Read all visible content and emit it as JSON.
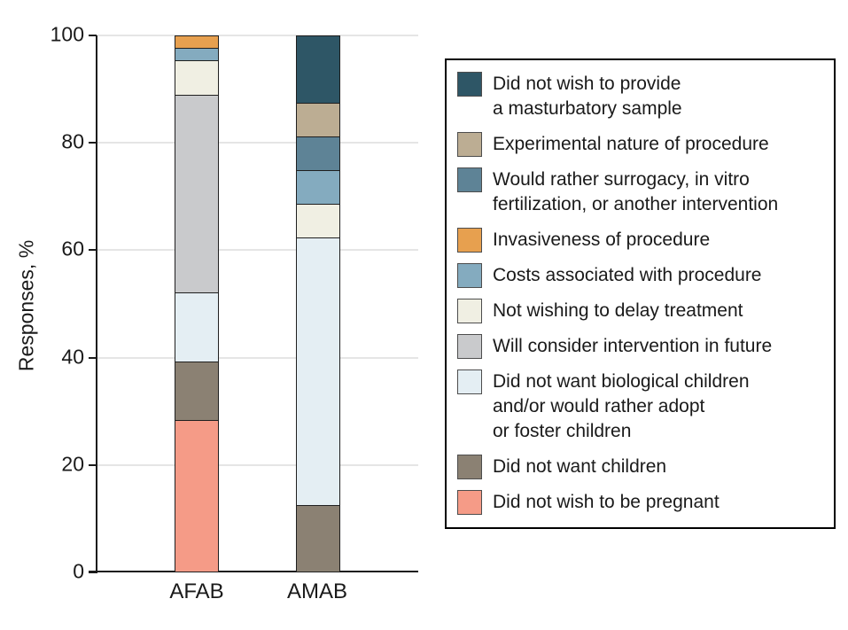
{
  "figure": {
    "ylabel": "Responses, %",
    "x_categories": [
      "AFAB",
      "AMAB"
    ],
    "y_ticks": [
      0,
      20,
      40,
      60,
      80,
      100
    ]
  },
  "legend": {
    "items": [
      {
        "id": "masturbatory-sample",
        "label": "Did not wish to provide\na masturbatory sample",
        "color": "#2e5666"
      },
      {
        "id": "experimental-nature",
        "label": "Experimental nature of procedure",
        "color": "#bcad93"
      },
      {
        "id": "surrogacy-ivf",
        "label": "Would rather surrogacy, in vitro\nfertilization, or another intervention",
        "color": "#5e8396"
      },
      {
        "id": "invasiveness",
        "label": "Invasiveness of procedure",
        "color": "#e7a04f"
      },
      {
        "id": "costs",
        "label": "Costs associated with procedure",
        "color": "#84abbf"
      },
      {
        "id": "delay-treatment",
        "label": "Not wishing to delay treatment",
        "color": "#f0efe3"
      },
      {
        "id": "future-intervention",
        "label": "Will consider intervention in future",
        "color": "#c9cacc"
      },
      {
        "id": "biological-children",
        "label": "Did not want biological children\nand/or would rather adopt\nor foster children",
        "color": "#e4eef3"
      },
      {
        "id": "no-children",
        "label": "Did not want children",
        "color": "#8b8173"
      },
      {
        "id": "pregnant",
        "label": "Did not wish to be pregnant",
        "color": "#f59b87"
      }
    ]
  },
  "chart_data": {
    "type": "bar",
    "subtype": "stacked-vertical",
    "title": "",
    "xlabel": "",
    "ylabel": "Responses, %",
    "ylim": [
      0,
      100
    ],
    "grid": "horizontal",
    "legend_position": "right",
    "categories": [
      "AFAB",
      "AMAB"
    ],
    "series": [
      {
        "id": "masturbatory-sample",
        "name": "Did not wish to provide a masturbatory sample",
        "values": [
          0,
          12.5
        ]
      },
      {
        "id": "experimental-nature",
        "name": "Experimental nature of procedure",
        "values": [
          0,
          6.3
        ]
      },
      {
        "id": "surrogacy-ivf",
        "name": "Would rather surrogacy, in vitro fertilization, or another intervention",
        "values": [
          0,
          6.3
        ]
      },
      {
        "id": "invasiveness",
        "name": "Invasiveness of procedure",
        "values": [
          2.2,
          0
        ]
      },
      {
        "id": "costs",
        "name": "Costs associated with procedure",
        "values": [
          2.2,
          6.3
        ]
      },
      {
        "id": "delay-treatment",
        "name": "Not wishing to delay treatment",
        "values": [
          6.5,
          6.3
        ]
      },
      {
        "id": "future-intervention",
        "name": "Will consider intervention in future",
        "values": [
          37.0,
          0
        ]
      },
      {
        "id": "biological-children",
        "name": "Did not want biological children and/or would rather adopt or foster children",
        "values": [
          13.0,
          50.0
        ]
      },
      {
        "id": "no-children",
        "name": "Did not want children",
        "values": [
          10.9,
          12.5
        ]
      },
      {
        "id": "pregnant",
        "name": "Did not wish to be pregnant",
        "values": [
          28.3,
          0
        ]
      }
    ],
    "stack_order_bottom_to_top": [
      "pregnant",
      "no-children",
      "biological-children",
      "future-intervention",
      "delay-treatment",
      "costs",
      "invasiveness",
      "surrogacy-ivf",
      "experimental-nature",
      "masturbatory-sample"
    ]
  }
}
